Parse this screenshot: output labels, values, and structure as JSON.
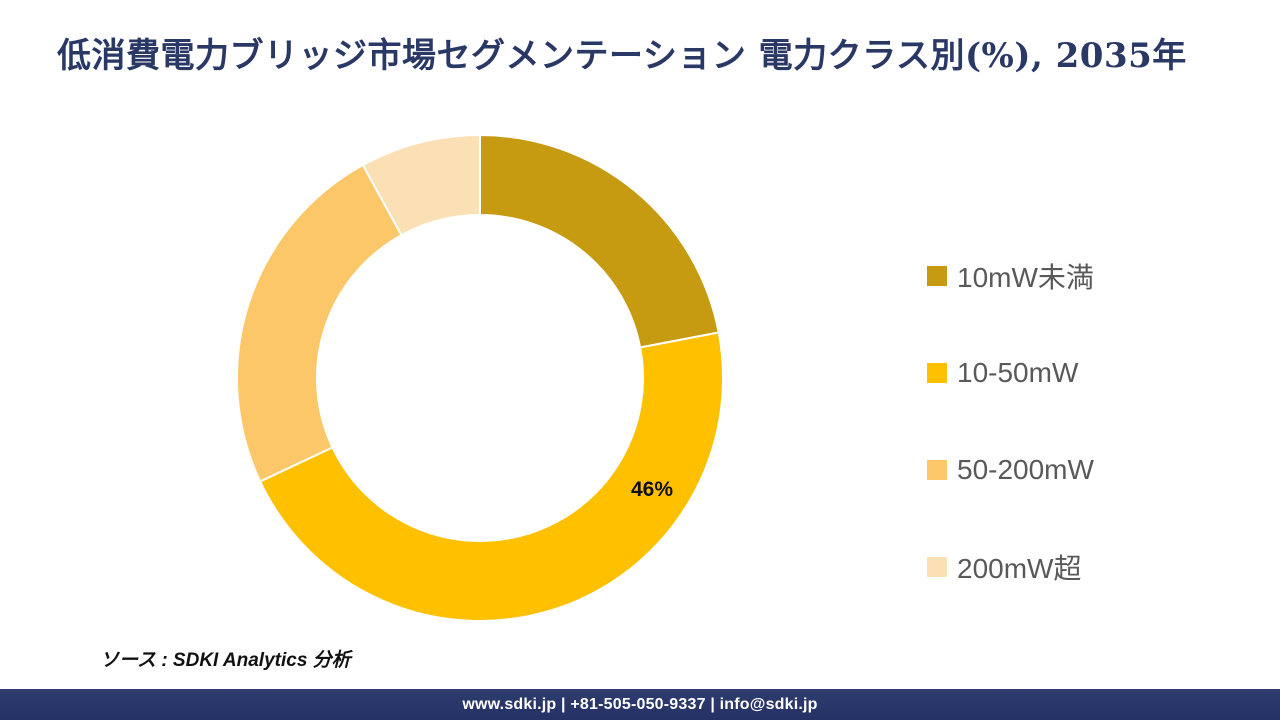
{
  "title": "低消費電力ブリッジ市場セグメンテーション 電力クラス別(%), 2035年",
  "chart_data": {
    "type": "pie",
    "subtype": "donut",
    "unit": "%",
    "start_angle_deg": 0,
    "direction": "clockwise",
    "donut_hole_ratio": 0.67,
    "legend_position": "right",
    "segments": [
      {
        "label": "10mW未満",
        "value": 22,
        "color": "#C69B12"
      },
      {
        "label": "10-50mW",
        "value": 46,
        "color": "#FFC000"
      },
      {
        "label": "50-200mW",
        "value": 24,
        "color": "#FBC768"
      },
      {
        "label": "200mW超",
        "value": 8,
        "color": "#FBE0B5"
      }
    ],
    "data_labels": [
      {
        "segment_index": 1,
        "text": "46%"
      }
    ]
  },
  "source_note": "ソース : SDKI Analytics 分析",
  "footer": {
    "text": "www.sdki.jp | +81-505-050-9337 | info@sdki.jp",
    "background": "#2B3866"
  },
  "colors": {
    "title_text": "#2A3866",
    "legend_text": "#595959",
    "separator": "#FFFFFF"
  }
}
